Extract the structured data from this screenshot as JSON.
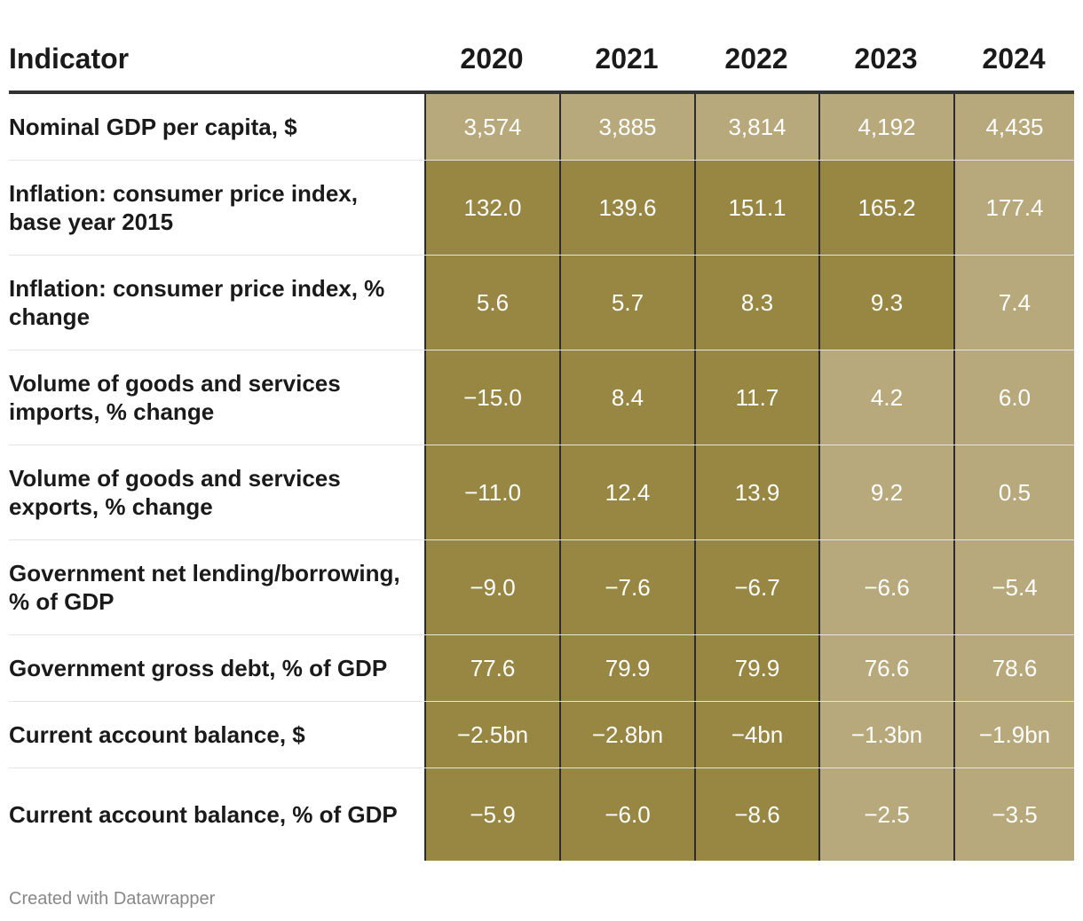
{
  "chart_data": {
    "type": "table",
    "header_label": "Indicator",
    "columns": [
      "2020",
      "2021",
      "2022",
      "2023",
      "2024"
    ],
    "rows": [
      {
        "label": "Nominal GDP per capita, $",
        "values": [
          "3,574",
          "3,885",
          "3,814",
          "4,192",
          "4,435"
        ],
        "shade": [
          "light",
          "light",
          "light",
          "light",
          "light"
        ]
      },
      {
        "label": "Inflation: consumer price index, base year 2015",
        "values": [
          "132.0",
          "139.6",
          "151.1",
          "165.2",
          "177.4"
        ],
        "shade": [
          "dark",
          "dark",
          "dark",
          "dark",
          "light"
        ]
      },
      {
        "label": "Inflation: consumer price index, % change",
        "values": [
          "5.6",
          "5.7",
          "8.3",
          "9.3",
          "7.4"
        ],
        "shade": [
          "dark",
          "dark",
          "dark",
          "dark",
          "light"
        ]
      },
      {
        "label": "Volume of goods and services imports, % change",
        "values": [
          "−15.0",
          "8.4",
          "11.7",
          "4.2",
          "6.0"
        ],
        "shade": [
          "dark",
          "dark",
          "dark",
          "light",
          "light"
        ]
      },
      {
        "label": "Volume of goods and services exports, % change",
        "values": [
          "−11.0",
          "12.4",
          "13.9",
          "9.2",
          "0.5"
        ],
        "shade": [
          "dark",
          "dark",
          "dark",
          "light",
          "light"
        ]
      },
      {
        "label": "Government net lending/borrowing, % of GDP",
        "values": [
          "−9.0",
          "−7.6",
          "−6.7",
          "−6.6",
          "−5.4"
        ],
        "shade": [
          "dark",
          "dark",
          "dark",
          "light",
          "light"
        ]
      },
      {
        "label": "Government gross debt, % of GDP",
        "values": [
          "77.6",
          "79.9",
          "79.9",
          "76.6",
          "78.6"
        ],
        "shade": [
          "dark",
          "dark",
          "dark",
          "light",
          "light"
        ]
      },
      {
        "label": "Current account balance, $",
        "values": [
          "−2.5bn",
          "−2.8bn",
          "−4bn",
          "−1.3bn",
          "−1.9bn"
        ],
        "shade": [
          "dark",
          "dark",
          "dark",
          "light",
          "light"
        ]
      },
      {
        "label": "Current account balance, % of GDP",
        "values": [
          "−5.9",
          "−6.0",
          "−8.6",
          "−2.5",
          "−3.5"
        ],
        "shade": [
          "dark",
          "dark",
          "dark",
          "light",
          "light"
        ]
      }
    ]
  },
  "colors": {
    "dark": "#978743",
    "light": "#b7a97b"
  },
  "footer": {
    "credit": "Created with Datawrapper"
  }
}
